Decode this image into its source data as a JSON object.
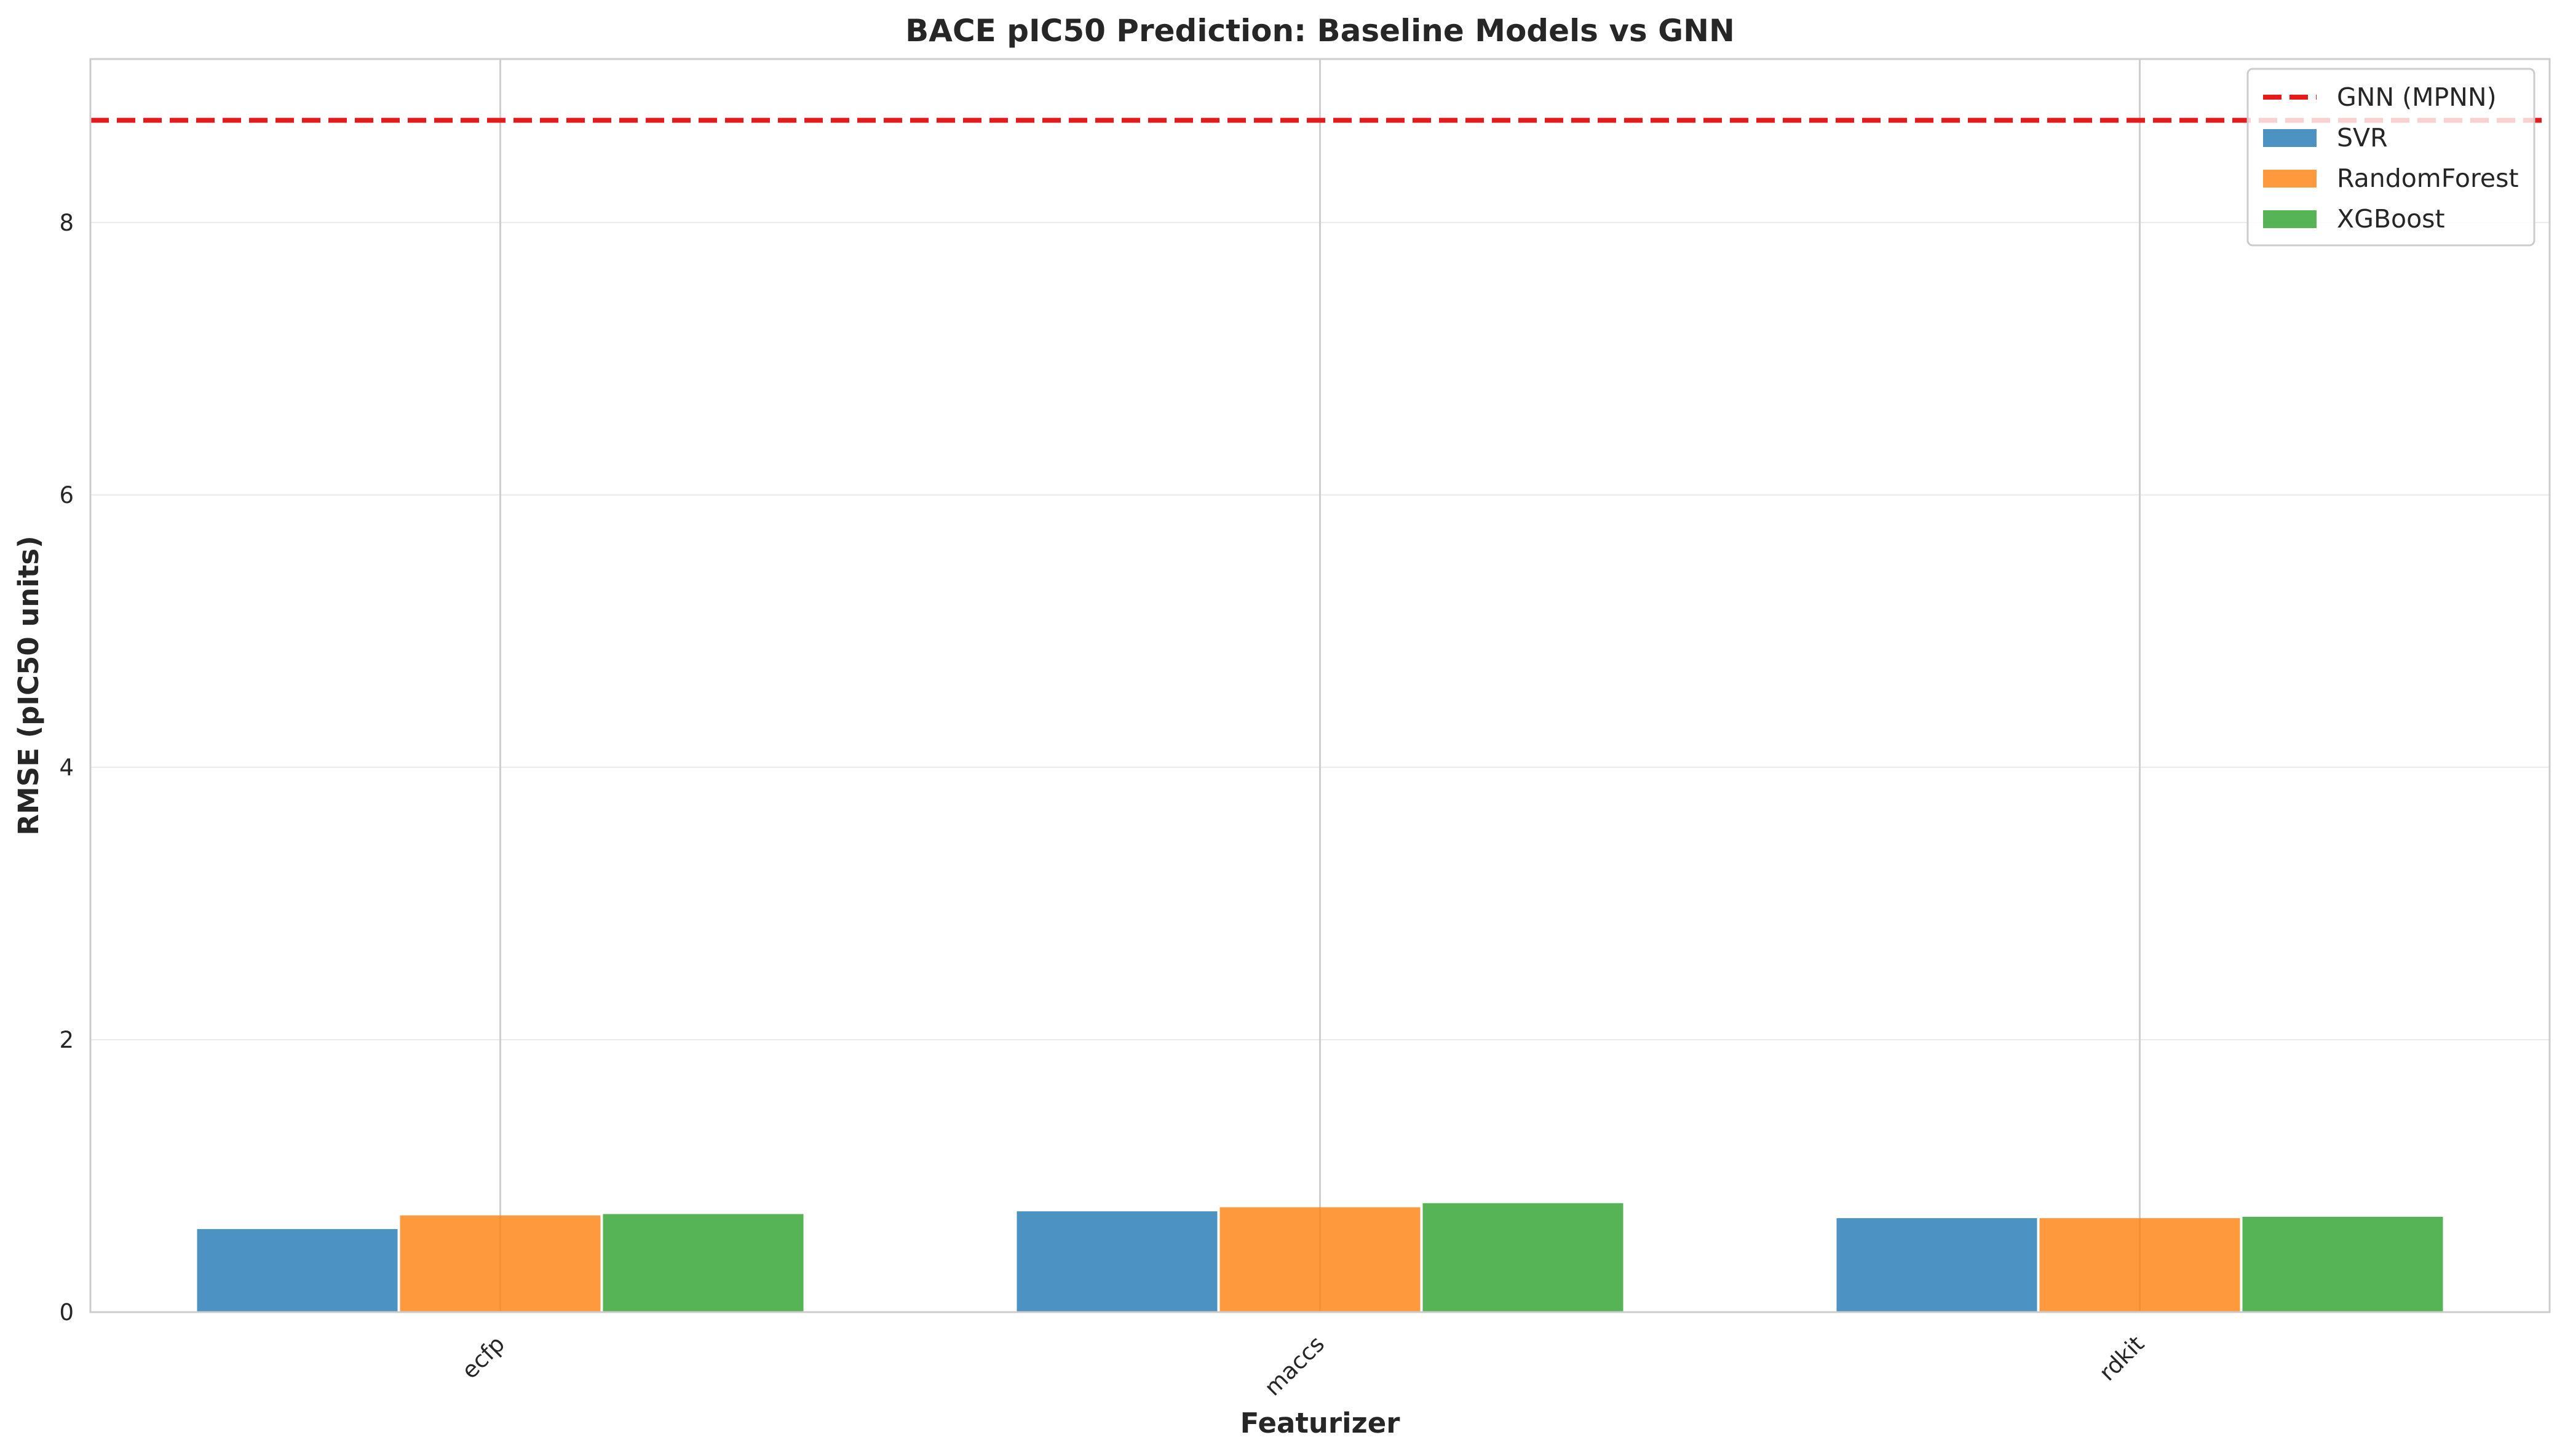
{
  "chart_data": {
    "type": "bar",
    "title": "BACE pIC50 Prediction: Baseline Models vs GNN",
    "xlabel": "Featurizer",
    "ylabel": "RMSE (pIC50 units)",
    "categories": [
      "ecfp",
      "maccs",
      "rdkit"
    ],
    "series": [
      {
        "name": "SVR",
        "values": [
          0.61,
          0.74,
          0.69
        ],
        "color": "#1f77b4"
      },
      {
        "name": "RandomForest",
        "values": [
          0.71,
          0.77,
          0.69
        ],
        "color": "#ff7f0e"
      },
      {
        "name": "XGBoost",
        "values": [
          0.72,
          0.8,
          0.7
        ],
        "color": "#2ca02c"
      }
    ],
    "reference_line": {
      "name": "GNN (MPNN)",
      "value": 8.75,
      "color": "#e41a1c",
      "style": "dashed"
    },
    "ylim": [
      0,
      9.2
    ],
    "yticks": [
      0,
      2,
      4,
      6,
      8
    ],
    "grid": true,
    "legend_position": "top-right"
  }
}
